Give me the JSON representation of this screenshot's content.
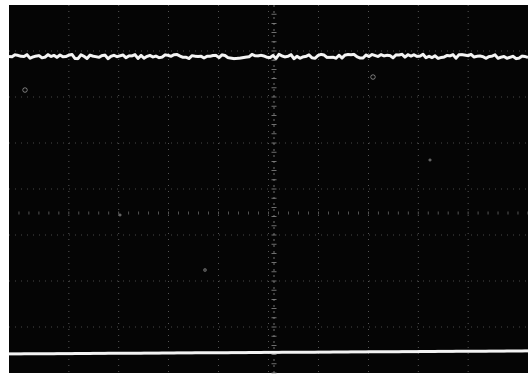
{
  "image": {
    "subject": "oscilloscope-trace-photograph",
    "colors": {
      "frame": "#ffffff",
      "screen": "#050505",
      "graticule": "#8a8a8a",
      "trace": "#f4f4f4"
    },
    "graticule": {
      "major_divisions_x": 10,
      "major_divisions_y": 8,
      "minor_ticks_per_division": 5
    },
    "traces": [
      {
        "name": "upper-trace",
        "level": 0.86,
        "noise": 0.012
      },
      {
        "name": "lower-trace",
        "level": 0.06,
        "noise": 0.0
      }
    ]
  }
}
